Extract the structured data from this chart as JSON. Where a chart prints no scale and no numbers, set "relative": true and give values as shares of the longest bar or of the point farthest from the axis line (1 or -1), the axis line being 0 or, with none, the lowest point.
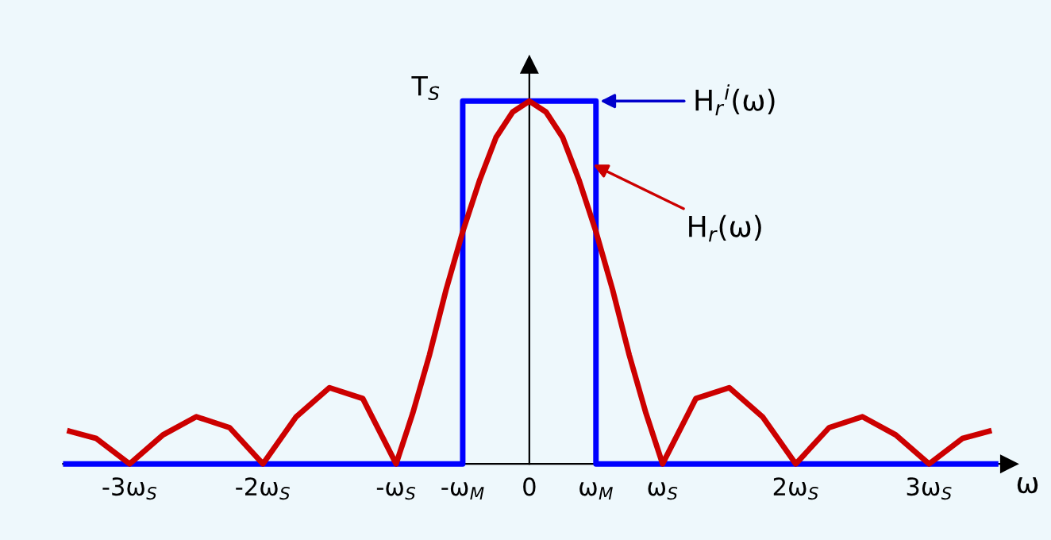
{
  "chart_data": {
    "type": "line",
    "relative": true,
    "xlabel": "ω",
    "xlim": [
      -3.5,
      3.6
    ],
    "xticks": [
      {
        "value": -3,
        "label": "-3ω$_{S}$"
      },
      {
        "value": -2,
        "label": "-2ω$_{S}$"
      },
      {
        "value": -1,
        "label": "-ω$_{S}$"
      },
      {
        "value": -0.5,
        "label": "-ω$_{M}$"
      },
      0,
      {
        "value": 0.5,
        "label": "ω$_{M}$"
      },
      {
        "value": 1,
        "label": "ω$_{S}$"
      },
      {
        "value": 2,
        "label": "2ω$_{S}$"
      },
      {
        "value": 3,
        "label": "3ω$_{S}$"
      }
    ],
    "tick_labels": "x",
    "marker": "none",
    "line_style": "solid",
    "series": [
      {
        "color": "#0000ff",
        "x": [
          -3.5,
          -0.5,
          -0.5,
          0.5,
          0.5,
          3.5
        ],
        "values": [
          0,
          0,
          1,
          1,
          0,
          0
        ]
      },
      {
        "color": "#cc0000",
        "x": [
          -3.45,
          -3.25,
          -3,
          -2.75,
          -2.5,
          -2.25,
          -2,
          -1.75,
          -1.5,
          -1.25,
          -1,
          -0.875,
          -0.75,
          -0.625,
          -0.5,
          -0.375,
          -0.25,
          -0.125,
          0,
          0.125,
          0.25,
          0.375,
          0.5,
          0.625,
          0.75,
          0.875,
          1,
          1.25,
          1.5,
          1.75,
          2,
          2.25,
          2.5,
          2.75,
          3,
          3.25,
          3.45
        ],
        "values": [
          0.09,
          0.07,
          0,
          0.08,
          0.13,
          0.1,
          0,
          0.13,
          0.21,
          0.18,
          0,
          0.14,
          0.3,
          0.48,
          0.64,
          0.78,
          0.9,
          0.97,
          1,
          0.97,
          0.9,
          0.78,
          0.64,
          0.48,
          0.3,
          0.14,
          0,
          0.18,
          0.21,
          0.13,
          0,
          0.1,
          0.13,
          0.08,
          0,
          0.07,
          0.09
        ]
      }
    ],
    "annotations": [
      {
        "text": "T$_{S}$",
        "x": -0.5,
        "y": 1
      },
      {
        "text": "H$_{r}$$^{i}$(ω)",
        "x": 0.5,
        "y": 1
      },
      {
        "text": "H$_{r}$(ω)",
        "x": 0.45,
        "y": 0.83
      }
    ]
  }
}
